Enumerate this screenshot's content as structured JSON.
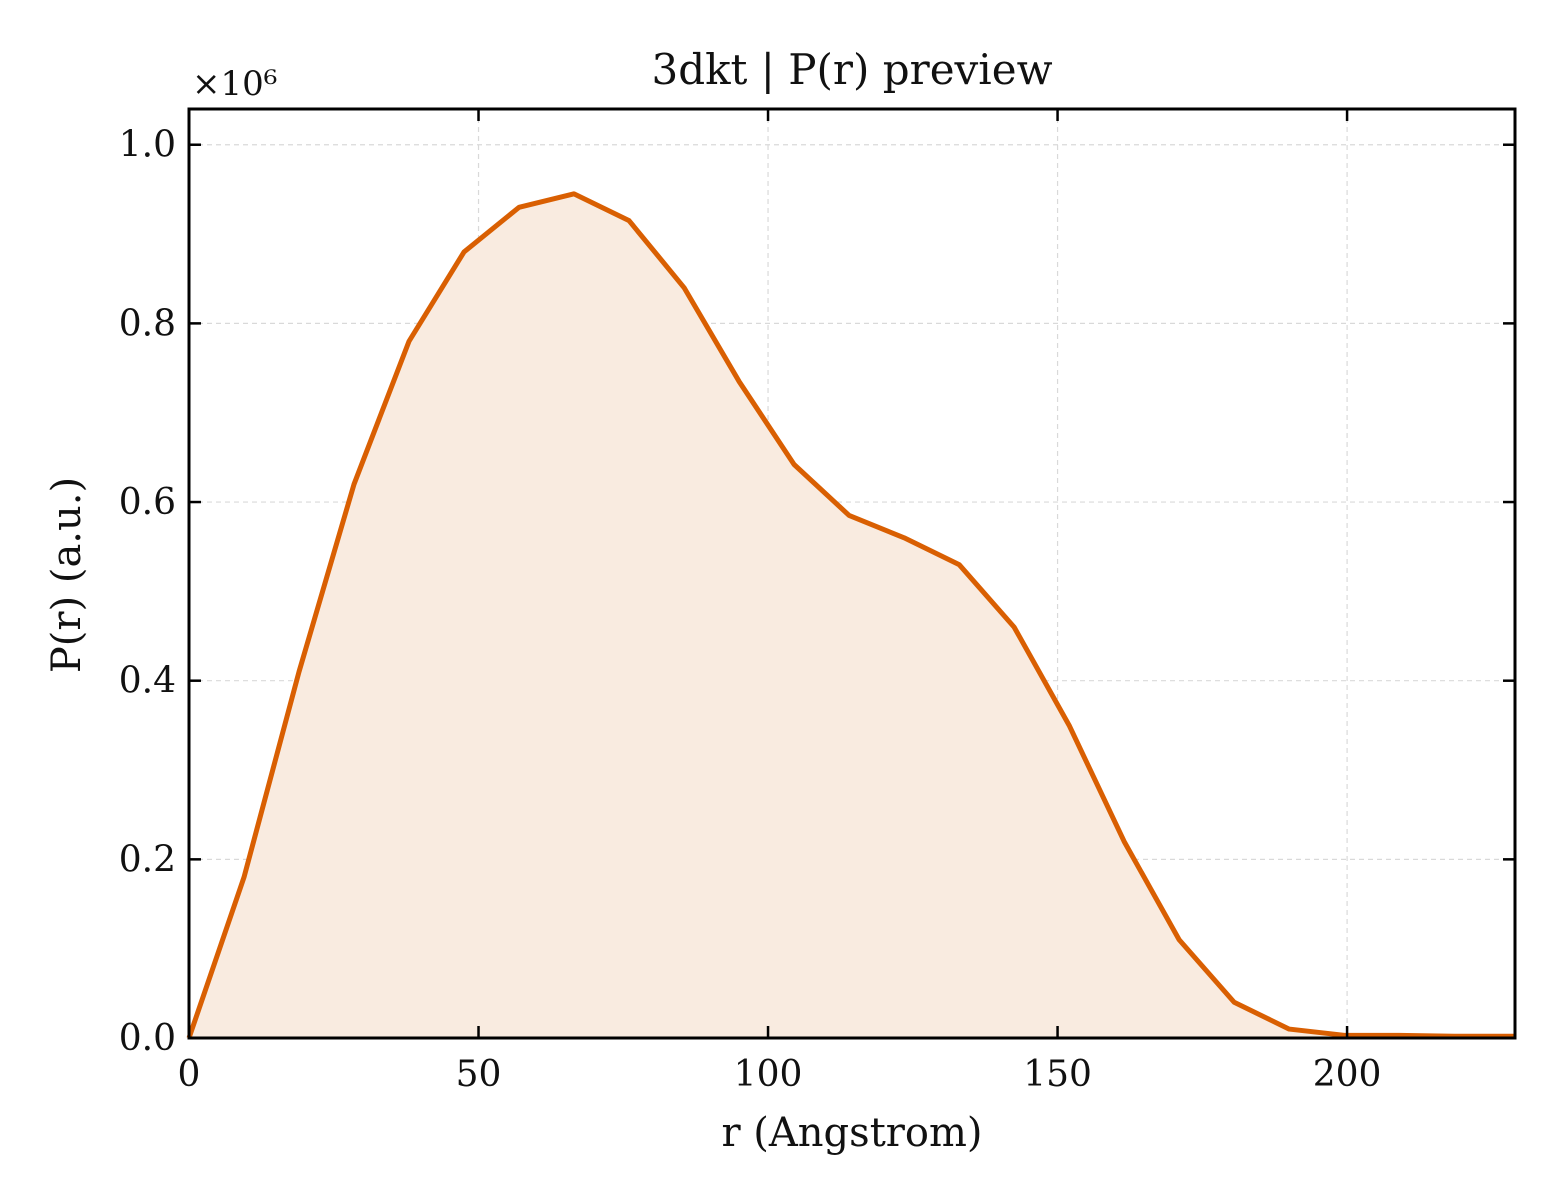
{
  "chart_data": {
    "type": "area",
    "title": "3dkt | P(r) preview",
    "xlabel": "r (Angstrom)",
    "ylabel": "P(r) (a.u.)",
    "y_multiplier_label": "×10⁶",
    "xlim": [
      0,
      229
    ],
    "ylim": [
      0,
      1.04
    ],
    "x_ticks": [
      0,
      50,
      100,
      150,
      200
    ],
    "y_ticks": [
      0.0,
      0.2,
      0.4,
      0.6,
      0.8,
      1.0
    ],
    "x_tick_labels": [
      "0",
      "50",
      "100",
      "150",
      "200"
    ],
    "y_tick_labels": [
      "0.0",
      "0.2",
      "0.4",
      "0.6",
      "0.8",
      "1.0"
    ],
    "grid": true,
    "line_color": "#d95f02",
    "fill_color": "#f9ebe0",
    "series": [
      {
        "x": [
          0,
          9.5,
          19,
          28.5,
          38,
          47.5,
          57,
          66.5,
          76,
          85.5,
          95,
          104.5,
          114,
          123.5,
          133,
          142.5,
          152,
          161.5,
          171,
          180.5,
          190,
          199.5,
          209,
          218.5,
          229
        ],
        "values": [
          0.0,
          0.18,
          0.41,
          0.62,
          0.78,
          0.88,
          0.93,
          0.945,
          0.915,
          0.84,
          0.735,
          0.642,
          0.585,
          0.56,
          0.53,
          0.46,
          0.35,
          0.22,
          0.11,
          0.04,
          0.01,
          0.003,
          0.003,
          0.002,
          0.002
        ]
      }
    ]
  }
}
